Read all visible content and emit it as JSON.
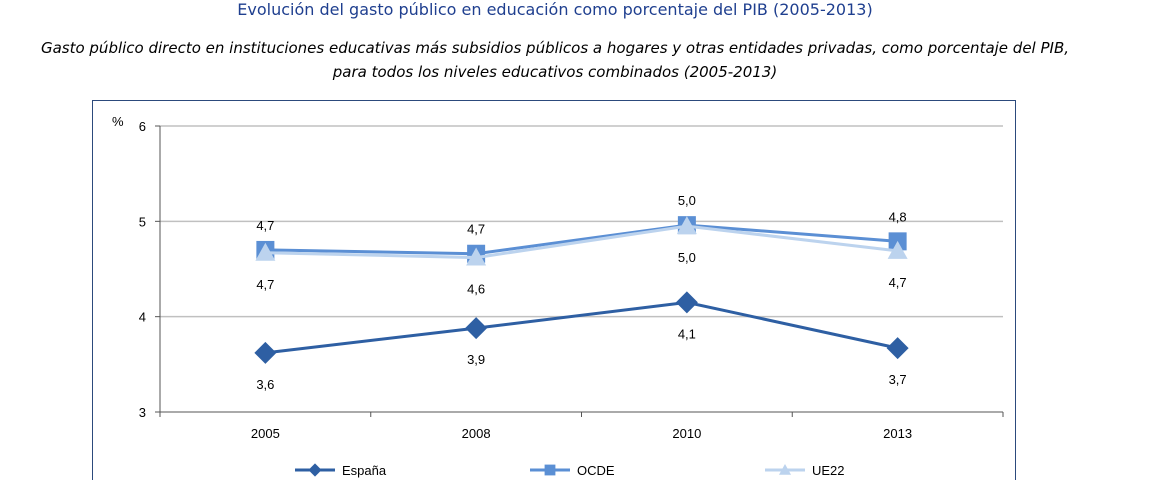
{
  "title": "Evolución del gasto público en educación como porcentaje del PIB (2005-2013)",
  "subtitle": "Gasto público directo en instituciones educativas más subsidios públicos a hogares y otras entidades privadas, como porcentaje del PIB, para todos los niveles educativos combinados (2005-2013)",
  "chart_data": {
    "type": "line",
    "categories": [
      "2005",
      "2008",
      "2010",
      "2013"
    ],
    "ylabel": "%",
    "ylim": [
      3,
      6
    ],
    "yticks": [
      "3",
      "4",
      "5",
      "6"
    ],
    "grid": true,
    "legend_position": "bottom",
    "series": [
      {
        "name": "España",
        "values": [
          3.62,
          3.88,
          4.15,
          3.67
        ],
        "labels": [
          "3,6",
          "3,9",
          "4,1",
          "3,7"
        ],
        "label_position": "below",
        "color": "#2e5fa3",
        "marker": "diamond"
      },
      {
        "name": "OCDE",
        "values": [
          4.7,
          4.66,
          4.96,
          4.79
        ],
        "labels": [
          "4,7",
          "4,7",
          "5,0",
          "4,8"
        ],
        "label_position": "above",
        "color": "#5b8fd4",
        "marker": "square"
      },
      {
        "name": "UE22",
        "values": [
          4.67,
          4.62,
          4.95,
          4.69
        ],
        "labels": [
          "4,7",
          "4,6",
          "5,0",
          "4,7"
        ],
        "label_position": "below",
        "color": "#bcd3ee",
        "marker": "triangle"
      }
    ]
  }
}
